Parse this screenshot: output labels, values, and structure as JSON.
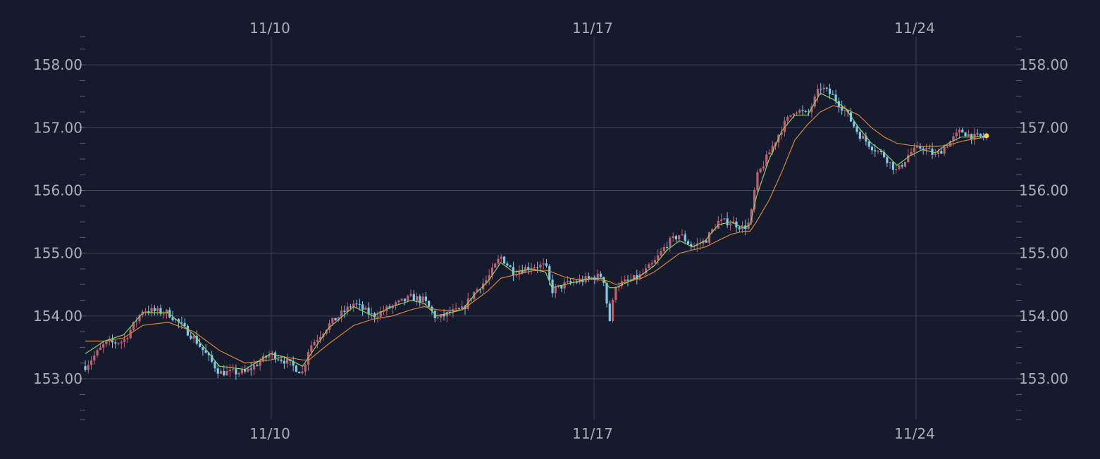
{
  "chart_data": {
    "type": "candlestick",
    "x_ticks": [
      "11/10",
      "11/17",
      "11/24"
    ],
    "ylim": [
      152.35,
      158.45
    ],
    "y_ticks": [
      "158.00",
      "157.00",
      "156.00",
      "155.00",
      "154.00",
      "153.00"
    ],
    "grid": true,
    "colors": {
      "background": "#151b2c",
      "grid": "#3a4252",
      "candle_up": "#c0606e",
      "candle_down": "#7fc9e6",
      "ma_short": "#8ccf6a",
      "ma_long": "#d9843a",
      "last_point": "#f2d43a",
      "text": "#a9b0bd"
    },
    "price_path": [
      [
        0,
        153.2
      ],
      [
        3,
        153.55
      ],
      [
        6,
        153.6
      ],
      [
        9,
        154.1
      ],
      [
        13,
        154.05
      ],
      [
        17,
        153.65
      ],
      [
        21,
        153.1
      ],
      [
        25,
        153.1
      ],
      [
        29,
        153.4
      ],
      [
        31,
        153.3
      ],
      [
        34,
        153.1
      ],
      [
        35,
        153.5
      ],
      [
        38,
        153.85
      ],
      [
        42,
        154.2
      ],
      [
        45,
        154.0
      ],
      [
        48,
        154.15
      ],
      [
        51,
        154.3
      ],
      [
        53,
        154.25
      ],
      [
        55,
        153.95
      ],
      [
        57,
        154.05
      ],
      [
        59,
        154.1
      ],
      [
        61,
        154.4
      ],
      [
        63,
        154.6
      ],
      [
        65,
        154.95
      ],
      [
        67,
        154.7
      ],
      [
        70,
        154.8
      ],
      [
        72,
        154.8
      ],
      [
        73,
        154.4
      ],
      [
        75,
        154.5
      ],
      [
        77,
        154.55
      ],
      [
        79,
        154.6
      ],
      [
        81,
        154.65
      ],
      [
        82,
        153.9
      ],
      [
        83,
        154.5
      ],
      [
        85,
        154.55
      ],
      [
        87,
        154.65
      ],
      [
        89,
        154.85
      ],
      [
        91,
        155.15
      ],
      [
        93,
        155.3
      ],
      [
        95,
        155.1
      ],
      [
        97,
        155.2
      ],
      [
        99,
        155.5
      ],
      [
        101,
        155.5
      ],
      [
        103,
        155.4
      ],
      [
        104,
        155.5
      ],
      [
        105,
        156.2
      ],
      [
        107,
        156.6
      ],
      [
        109,
        157.0
      ],
      [
        111,
        157.3
      ],
      [
        113,
        157.2
      ],
      [
        115,
        157.65
      ],
      [
        117,
        157.5
      ],
      [
        119,
        157.25
      ],
      [
        121,
        156.9
      ],
      [
        123,
        156.7
      ],
      [
        125,
        156.55
      ],
      [
        127,
        156.3
      ],
      [
        129,
        156.6
      ],
      [
        131,
        156.7
      ],
      [
        133,
        156.55
      ],
      [
        135,
        156.75
      ],
      [
        137,
        156.95
      ],
      [
        139,
        156.85
      ],
      [
        141,
        156.85
      ]
    ],
    "ma_short_path": [
      [
        0,
        153.4
      ],
      [
        3,
        153.6
      ],
      [
        6,
        153.7
      ],
      [
        9,
        154.05
      ],
      [
        13,
        154.05
      ],
      [
        17,
        153.7
      ],
      [
        21,
        153.2
      ],
      [
        25,
        153.15
      ],
      [
        29,
        153.4
      ],
      [
        31,
        153.35
      ],
      [
        34,
        153.2
      ],
      [
        35,
        153.35
      ],
      [
        38,
        153.8
      ],
      [
        42,
        154.15
      ],
      [
        45,
        154.0
      ],
      [
        48,
        154.15
      ],
      [
        51,
        154.25
      ],
      [
        53,
        154.2
      ],
      [
        55,
        154.0
      ],
      [
        57,
        154.05
      ],
      [
        59,
        154.1
      ],
      [
        61,
        154.35
      ],
      [
        63,
        154.55
      ],
      [
        65,
        154.85
      ],
      [
        67,
        154.7
      ],
      [
        70,
        154.75
      ],
      [
        72,
        154.7
      ],
      [
        73,
        154.45
      ],
      [
        75,
        154.5
      ],
      [
        77,
        154.55
      ],
      [
        79,
        154.6
      ],
      [
        81,
        154.6
      ],
      [
        82,
        154.45
      ],
      [
        83,
        154.45
      ],
      [
        85,
        154.55
      ],
      [
        87,
        154.65
      ],
      [
        89,
        154.8
      ],
      [
        91,
        155.05
      ],
      [
        93,
        155.2
      ],
      [
        95,
        155.1
      ],
      [
        97,
        155.2
      ],
      [
        99,
        155.45
      ],
      [
        101,
        155.5
      ],
      [
        103,
        155.4
      ],
      [
        104,
        155.45
      ],
      [
        105,
        155.9
      ],
      [
        107,
        156.5
      ],
      [
        109,
        156.95
      ],
      [
        111,
        157.2
      ],
      [
        113,
        157.2
      ],
      [
        115,
        157.55
      ],
      [
        117,
        157.45
      ],
      [
        119,
        157.3
      ],
      [
        121,
        157.0
      ],
      [
        123,
        156.75
      ],
      [
        125,
        156.6
      ],
      [
        127,
        156.4
      ],
      [
        129,
        156.55
      ],
      [
        131,
        156.65
      ],
      [
        133,
        156.6
      ],
      [
        135,
        156.75
      ],
      [
        137,
        156.85
      ],
      [
        139,
        156.85
      ],
      [
        141,
        156.87
      ]
    ],
    "ma_long_path": [
      [
        0,
        153.6
      ],
      [
        3,
        153.6
      ],
      [
        6,
        153.65
      ],
      [
        9,
        153.85
      ],
      [
        13,
        153.9
      ],
      [
        17,
        153.75
      ],
      [
        21,
        153.45
      ],
      [
        25,
        153.25
      ],
      [
        29,
        153.3
      ],
      [
        31,
        153.35
      ],
      [
        34,
        153.3
      ],
      [
        35,
        153.3
      ],
      [
        38,
        153.55
      ],
      [
        42,
        153.85
      ],
      [
        45,
        153.95
      ],
      [
        48,
        154.0
      ],
      [
        51,
        154.1
      ],
      [
        53,
        154.15
      ],
      [
        55,
        154.1
      ],
      [
        57,
        154.08
      ],
      [
        59,
        154.1
      ],
      [
        61,
        154.25
      ],
      [
        63,
        154.4
      ],
      [
        65,
        154.6
      ],
      [
        67,
        154.65
      ],
      [
        70,
        154.72
      ],
      [
        72,
        154.73
      ],
      [
        73,
        154.7
      ],
      [
        75,
        154.62
      ],
      [
        77,
        154.58
      ],
      [
        79,
        154.58
      ],
      [
        81,
        154.57
      ],
      [
        82,
        154.55
      ],
      [
        83,
        154.5
      ],
      [
        85,
        154.55
      ],
      [
        87,
        154.6
      ],
      [
        89,
        154.7
      ],
      [
        91,
        154.85
      ],
      [
        93,
        155.0
      ],
      [
        95,
        155.05
      ],
      [
        97,
        155.1
      ],
      [
        99,
        155.2
      ],
      [
        101,
        155.3
      ],
      [
        103,
        155.35
      ],
      [
        104,
        155.35
      ],
      [
        105,
        155.5
      ],
      [
        107,
        155.85
      ],
      [
        109,
        156.3
      ],
      [
        111,
        156.8
      ],
      [
        113,
        157.05
      ],
      [
        115,
        157.25
      ],
      [
        117,
        157.35
      ],
      [
        119,
        157.3
      ],
      [
        121,
        157.2
      ],
      [
        123,
        157.0
      ],
      [
        125,
        156.85
      ],
      [
        127,
        156.75
      ],
      [
        129,
        156.72
      ],
      [
        131,
        156.7
      ],
      [
        133,
        156.7
      ],
      [
        135,
        156.72
      ],
      [
        137,
        156.78
      ],
      [
        139,
        156.82
      ],
      [
        141,
        156.85
      ]
    ]
  }
}
